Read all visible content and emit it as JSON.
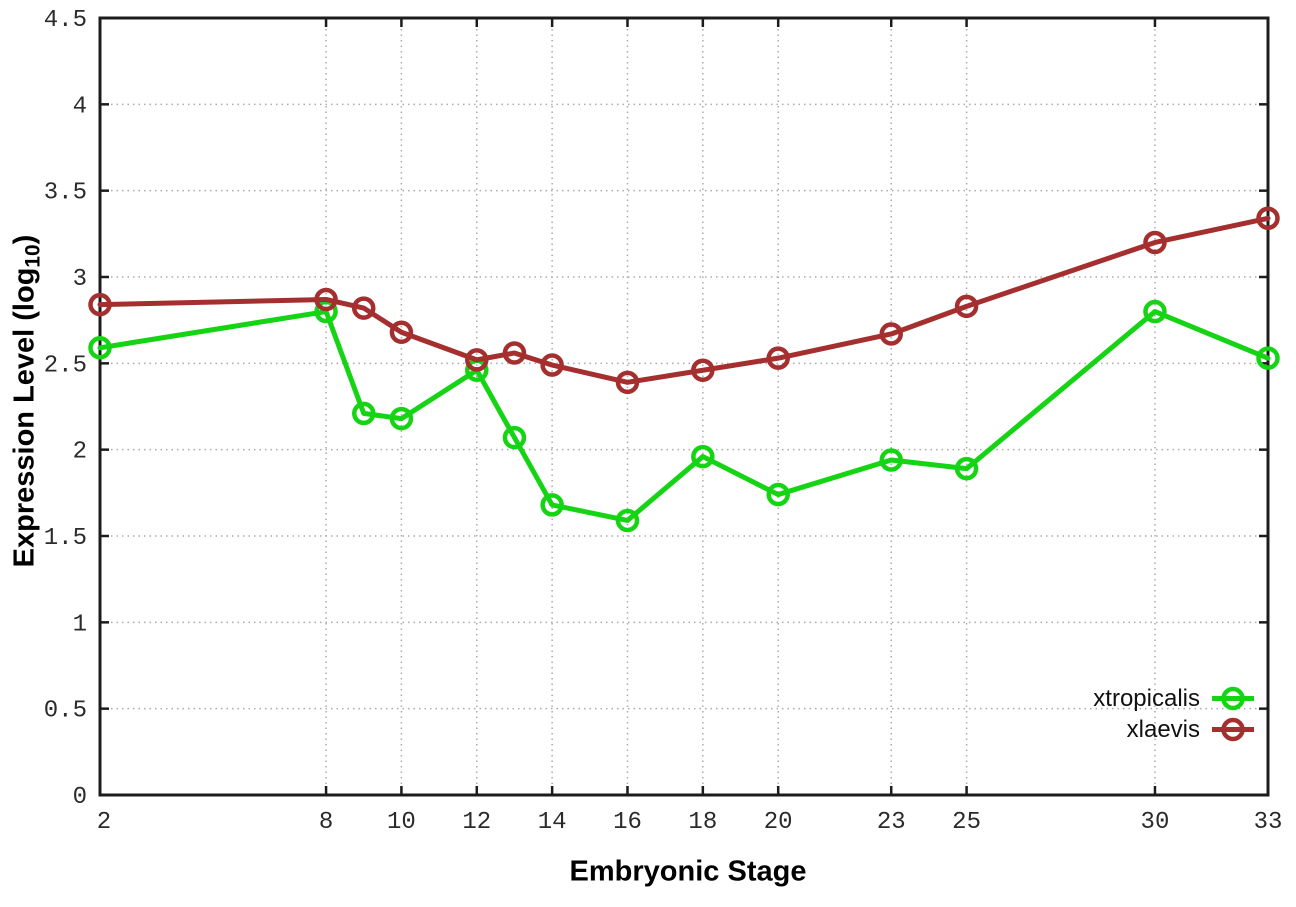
{
  "figure": {
    "background": "#ffffff"
  },
  "axes": {
    "x_title": "Embryonic Stage",
    "y_title_prefix": "Expression Level (log",
    "y_title_sub": "10",
    "y_title_suffix": ")"
  },
  "chart_data": {
    "type": "line",
    "title": "",
    "xlabel": "Embryonic Stage",
    "ylabel": "Expression Level (log10)",
    "x": [
      2,
      8,
      9,
      10,
      12,
      13,
      14,
      16,
      18,
      20,
      23,
      25,
      30,
      33
    ],
    "series": [
      {
        "name": "xtropicalis",
        "color": "#14d414",
        "values": [
          2.59,
          2.8,
          2.21,
          2.18,
          2.46,
          2.07,
          1.68,
          1.59,
          1.96,
          1.74,
          1.94,
          1.89,
          2.8,
          2.53
        ]
      },
      {
        "name": "xlaevis",
        "color": "#a52f2f",
        "values": [
          2.84,
          2.87,
          2.82,
          2.68,
          2.52,
          2.56,
          2.49,
          2.39,
          2.46,
          2.53,
          2.67,
          2.83,
          3.2,
          3.34
        ]
      }
    ],
    "xlim": [
      2,
      33
    ],
    "ylim": [
      0,
      4.5
    ],
    "x_tick_values": [
      2,
      8,
      10,
      12,
      14,
      16,
      18,
      20,
      23,
      25,
      30,
      33
    ],
    "x_tick_labels": [
      "2",
      "8",
      "10",
      "12",
      "14",
      "16",
      "18",
      "20",
      "23",
      "25",
      "30",
      "33"
    ],
    "y_tick_values": [
      0,
      0.5,
      1,
      1.5,
      2,
      2.5,
      3,
      3.5,
      4,
      4.5
    ],
    "y_tick_labels": [
      "0",
      "0.5",
      "1",
      "1.5",
      "2",
      "2.5",
      "3",
      "3.5",
      "4",
      "4.5"
    ],
    "grid": true,
    "legend_position": "inside bottom-right",
    "style": {
      "grid_color": "#ababab",
      "border_color": "#1c1c1c",
      "tick_text_color": "#2b2b2b",
      "line_width": 5,
      "marker": "open-circle",
      "marker_radius": 9.5,
      "marker_stroke": 4.5,
      "tick_font_size": 24
    }
  }
}
